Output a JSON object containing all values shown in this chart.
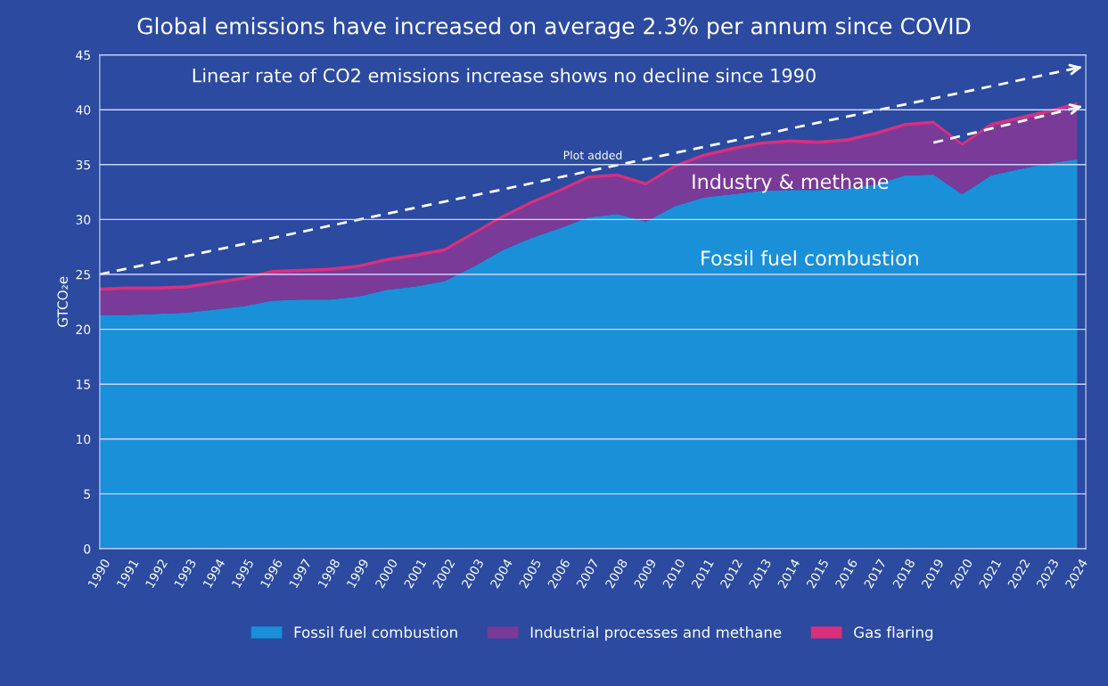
{
  "chart_data": {
    "type": "area",
    "title": "Global emissions have increased on average 2.3% per annum since COVID",
    "ylabel": "GTCO₂e",
    "categories": [
      "1990",
      "1991",
      "1992",
      "1993",
      "1994",
      "1995",
      "1996",
      "1997",
      "1998",
      "1999",
      "2000",
      "2001",
      "2002",
      "2003",
      "2004",
      "2005",
      "2006",
      "2007",
      "2008",
      "2009",
      "2010",
      "2011",
      "2012",
      "2013",
      "2014",
      "2015",
      "2016",
      "2017",
      "2018",
      "2019",
      "2020",
      "2021",
      "2022",
      "2023",
      "2024"
    ],
    "stacked": true,
    "series": [
      {
        "name": "Fossil fuel combustion",
        "color": "#1a90d8",
        "values": [
          21.3,
          21.3,
          21.4,
          21.5,
          21.8,
          22.1,
          22.6,
          22.7,
          22.7,
          23.0,
          23.6,
          23.9,
          24.4,
          25.7,
          27.2,
          28.3,
          29.2,
          30.2,
          30.5,
          29.8,
          31.2,
          32.0,
          32.3,
          32.6,
          32.7,
          32.7,
          32.8,
          33.2,
          34.0,
          34.1,
          32.3,
          34.0,
          34.6,
          35.1,
          35.5
        ]
      },
      {
        "name": "Industrial processes and methane",
        "color": "#7a3a98",
        "values": [
          2.2,
          2.3,
          2.2,
          2.2,
          2.3,
          2.4,
          2.5,
          2.5,
          2.6,
          2.6,
          2.6,
          2.7,
          2.7,
          2.9,
          2.9,
          3.1,
          3.3,
          3.5,
          3.4,
          3.3,
          3.5,
          3.7,
          4.0,
          4.2,
          4.3,
          4.2,
          4.3,
          4.5,
          4.5,
          4.6,
          4.4,
          4.5,
          4.5,
          4.6,
          4.9
        ]
      },
      {
        "name": "Gas flaring",
        "color": "#d8307f",
        "values": [
          0.3,
          0.3,
          0.3,
          0.3,
          0.3,
          0.3,
          0.3,
          0.3,
          0.3,
          0.3,
          0.3,
          0.3,
          0.3,
          0.3,
          0.3,
          0.3,
          0.3,
          0.3,
          0.3,
          0.3,
          0.3,
          0.3,
          0.3,
          0.3,
          0.3,
          0.3,
          0.3,
          0.3,
          0.3,
          0.3,
          0.3,
          0.3,
          0.3,
          0.3,
          0.3
        ]
      },
      {
        "type": "line",
        "color": "#ffffff",
        "line_style": "dashed",
        "values": [
          25.0,
          null,
          null,
          null,
          null,
          null,
          null,
          null,
          null,
          null,
          null,
          null,
          null,
          null,
          null,
          null,
          null,
          null,
          null,
          null,
          null,
          null,
          null,
          null,
          null,
          null,
          null,
          null,
          null,
          null,
          null,
          null,
          null,
          null,
          43.8
        ]
      },
      {
        "type": "line",
        "color": "#ffffff",
        "line_style": "dashed",
        "values": [
          null,
          null,
          null,
          null,
          null,
          null,
          null,
          null,
          null,
          null,
          null,
          null,
          null,
          null,
          null,
          null,
          null,
          null,
          null,
          null,
          null,
          null,
          null,
          null,
          null,
          null,
          null,
          null,
          null,
          37.0,
          null,
          null,
          null,
          null,
          40.2
        ]
      }
    ],
    "ylim": [
      0,
      45
    ],
    "yticks": [
      0,
      5,
      10,
      15,
      20,
      25,
      30,
      35,
      40,
      45
    ],
    "grid": "y",
    "legend": "bottom",
    "annotations": [
      "Linear rate of CO2 emissions increase shows no decline since 1990",
      "Plot added",
      "Industry & methane",
      "Fossil fuel combustion"
    ]
  }
}
